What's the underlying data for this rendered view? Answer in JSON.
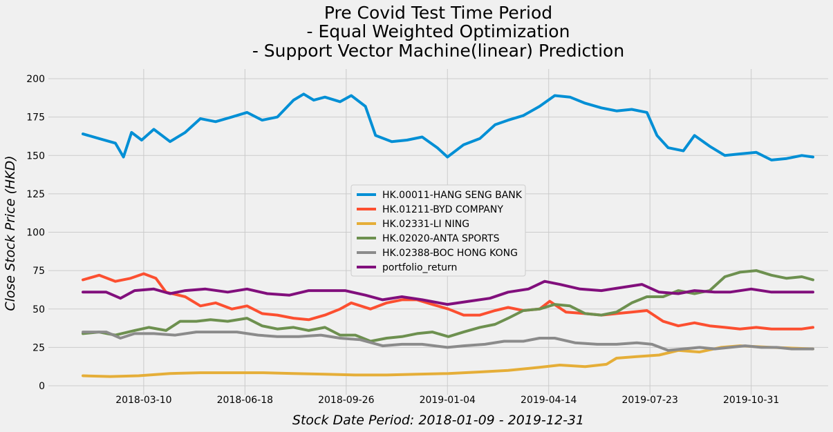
{
  "chart_data": {
    "type": "line",
    "title_lines": [
      "Pre Covid Test Time Period",
      "- Equal Weighted Optimization",
      "- Support Vector Machine(linear) Prediction"
    ],
    "xlabel": "Stock Date Period: 2018-01-09 - 2019-12-31",
    "ylabel": "Close Stock Price (HKD)",
    "ylim": [
      0,
      200
    ],
    "yticks": [
      0,
      25,
      50,
      75,
      100,
      125,
      150,
      175,
      200
    ],
    "xrange": [
      "2018-01-09",
      "2019-12-31"
    ],
    "xticks": [
      "2018-03-10",
      "2018-06-18",
      "2018-09-26",
      "2019-01-04",
      "2019-04-14",
      "2019-07-23",
      "2019-10-31"
    ],
    "grid": true,
    "legend_position": "center",
    "series": [
      {
        "name": "HK.00011-HANG SENG BANK",
        "color": "#008fd5",
        "points": [
          [
            "2018-01-09",
            164
          ],
          [
            "2018-01-25",
            161
          ],
          [
            "2018-02-10",
            158
          ],
          [
            "2018-02-18",
            149
          ],
          [
            "2018-02-26",
            165
          ],
          [
            "2018-03-08",
            160
          ],
          [
            "2018-03-20",
            167
          ],
          [
            "2018-04-05",
            159
          ],
          [
            "2018-04-20",
            165
          ],
          [
            "2018-05-05",
            174
          ],
          [
            "2018-05-20",
            172
          ],
          [
            "2018-06-05",
            175
          ],
          [
            "2018-06-20",
            178
          ],
          [
            "2018-07-05",
            173
          ],
          [
            "2018-07-20",
            175
          ],
          [
            "2018-08-05",
            186
          ],
          [
            "2018-08-15",
            190
          ],
          [
            "2018-08-25",
            186
          ],
          [
            "2018-09-05",
            188
          ],
          [
            "2018-09-20",
            185
          ],
          [
            "2018-10-01",
            189
          ],
          [
            "2018-10-15",
            182
          ],
          [
            "2018-10-25",
            163
          ],
          [
            "2018-11-10",
            159
          ],
          [
            "2018-11-25",
            160
          ],
          [
            "2018-12-10",
            162
          ],
          [
            "2018-12-25",
            155
          ],
          [
            "2019-01-04",
            149
          ],
          [
            "2019-01-20",
            157
          ],
          [
            "2019-02-05",
            161
          ],
          [
            "2019-02-20",
            170
          ],
          [
            "2019-03-05",
            173
          ],
          [
            "2019-03-20",
            176
          ],
          [
            "2019-04-05",
            182
          ],
          [
            "2019-04-20",
            189
          ],
          [
            "2019-05-05",
            188
          ],
          [
            "2019-05-20",
            184
          ],
          [
            "2019-06-05",
            181
          ],
          [
            "2019-06-20",
            179
          ],
          [
            "2019-07-05",
            180
          ],
          [
            "2019-07-20",
            178
          ],
          [
            "2019-07-30",
            163
          ],
          [
            "2019-08-10",
            155
          ],
          [
            "2019-08-25",
            153
          ],
          [
            "2019-09-05",
            163
          ],
          [
            "2019-09-20",
            156
          ],
          [
            "2019-10-05",
            150
          ],
          [
            "2019-10-20",
            151
          ],
          [
            "2019-11-05",
            152
          ],
          [
            "2019-11-20",
            147
          ],
          [
            "2019-12-05",
            148
          ],
          [
            "2019-12-20",
            150
          ],
          [
            "2019-12-31",
            149
          ]
        ]
      },
      {
        "name": "HK.01211-BYD COMPANY",
        "color": "#fc4f30",
        "points": [
          [
            "2018-01-09",
            69
          ],
          [
            "2018-01-25",
            72
          ],
          [
            "2018-02-10",
            68
          ],
          [
            "2018-02-25",
            70
          ],
          [
            "2018-03-10",
            73
          ],
          [
            "2018-03-22",
            70
          ],
          [
            "2018-04-01",
            61
          ],
          [
            "2018-04-20",
            58
          ],
          [
            "2018-05-05",
            52
          ],
          [
            "2018-05-20",
            54
          ],
          [
            "2018-06-05",
            50
          ],
          [
            "2018-06-20",
            52
          ],
          [
            "2018-07-05",
            47
          ],
          [
            "2018-07-20",
            46
          ],
          [
            "2018-08-05",
            44
          ],
          [
            "2018-08-20",
            43
          ],
          [
            "2018-09-05",
            46
          ],
          [
            "2018-09-20",
            50
          ],
          [
            "2018-10-01",
            54
          ],
          [
            "2018-10-20",
            50
          ],
          [
            "2018-11-05",
            54
          ],
          [
            "2018-11-20",
            56
          ],
          [
            "2018-12-05",
            56
          ],
          [
            "2018-12-20",
            53
          ],
          [
            "2019-01-05",
            50
          ],
          [
            "2019-01-20",
            46
          ],
          [
            "2019-02-05",
            46
          ],
          [
            "2019-02-20",
            49
          ],
          [
            "2019-03-05",
            51
          ],
          [
            "2019-03-20",
            49
          ],
          [
            "2019-04-05",
            50
          ],
          [
            "2019-04-15",
            55
          ],
          [
            "2019-05-01",
            48
          ],
          [
            "2019-05-20",
            47
          ],
          [
            "2019-06-05",
            46
          ],
          [
            "2019-06-20",
            47
          ],
          [
            "2019-07-05",
            48
          ],
          [
            "2019-07-20",
            49
          ],
          [
            "2019-08-05",
            42
          ],
          [
            "2019-08-20",
            39
          ],
          [
            "2019-09-05",
            41
          ],
          [
            "2019-09-20",
            39
          ],
          [
            "2019-10-05",
            38
          ],
          [
            "2019-10-20",
            37
          ],
          [
            "2019-11-05",
            38
          ],
          [
            "2019-11-20",
            37
          ],
          [
            "2019-12-05",
            37
          ],
          [
            "2019-12-20",
            37
          ],
          [
            "2019-12-31",
            38
          ]
        ]
      },
      {
        "name": "HK.02331-LI NING",
        "color": "#e5ae38",
        "points": [
          [
            "2018-01-09",
            6.5
          ],
          [
            "2018-02-05",
            6
          ],
          [
            "2018-03-05",
            6.5
          ],
          [
            "2018-04-05",
            8
          ],
          [
            "2018-05-05",
            8.5
          ],
          [
            "2018-06-05",
            8.5
          ],
          [
            "2018-07-05",
            8.5
          ],
          [
            "2018-08-05",
            8
          ],
          [
            "2018-09-05",
            7.5
          ],
          [
            "2018-10-05",
            7
          ],
          [
            "2018-11-05",
            7
          ],
          [
            "2018-12-05",
            7.5
          ],
          [
            "2019-01-05",
            8
          ],
          [
            "2019-02-05",
            9
          ],
          [
            "2019-03-05",
            10
          ],
          [
            "2019-04-05",
            12
          ],
          [
            "2019-04-25",
            13.5
          ],
          [
            "2019-05-20",
            12.5
          ],
          [
            "2019-06-10",
            14
          ],
          [
            "2019-06-20",
            18
          ],
          [
            "2019-07-10",
            19
          ],
          [
            "2019-08-01",
            20
          ],
          [
            "2019-08-20",
            23
          ],
          [
            "2019-09-10",
            22
          ],
          [
            "2019-10-01",
            25
          ],
          [
            "2019-10-20",
            26
          ],
          [
            "2019-11-20",
            25
          ],
          [
            "2019-12-31",
            24
          ]
        ]
      },
      {
        "name": "HK.02020-ANTA SPORTS",
        "color": "#6d904f",
        "points": [
          [
            "2018-01-09",
            34
          ],
          [
            "2018-01-25",
            35
          ],
          [
            "2018-02-10",
            33
          ],
          [
            "2018-03-01",
            36
          ],
          [
            "2018-03-15",
            38
          ],
          [
            "2018-04-01",
            36
          ],
          [
            "2018-04-15",
            42
          ],
          [
            "2018-05-01",
            42
          ],
          [
            "2018-05-15",
            43
          ],
          [
            "2018-06-01",
            42
          ],
          [
            "2018-06-20",
            44
          ],
          [
            "2018-07-05",
            39
          ],
          [
            "2018-07-20",
            37
          ],
          [
            "2018-08-05",
            38
          ],
          [
            "2018-08-20",
            36
          ],
          [
            "2018-09-05",
            38
          ],
          [
            "2018-09-20",
            33
          ],
          [
            "2018-10-05",
            33
          ],
          [
            "2018-10-20",
            29
          ],
          [
            "2018-11-05",
            31
          ],
          [
            "2018-11-20",
            32
          ],
          [
            "2018-12-05",
            34
          ],
          [
            "2018-12-20",
            35
          ],
          [
            "2019-01-05",
            32
          ],
          [
            "2019-01-20",
            35
          ],
          [
            "2019-02-05",
            38
          ],
          [
            "2019-02-20",
            40
          ],
          [
            "2019-03-05",
            44
          ],
          [
            "2019-03-20",
            49
          ],
          [
            "2019-04-05",
            50
          ],
          [
            "2019-04-20",
            53
          ],
          [
            "2019-05-05",
            52
          ],
          [
            "2019-05-20",
            47
          ],
          [
            "2019-06-05",
            46
          ],
          [
            "2019-06-20",
            48
          ],
          [
            "2019-07-05",
            54
          ],
          [
            "2019-07-20",
            58
          ],
          [
            "2019-08-05",
            58
          ],
          [
            "2019-08-20",
            62
          ],
          [
            "2019-09-05",
            60
          ],
          [
            "2019-09-20",
            62
          ],
          [
            "2019-10-05",
            71
          ],
          [
            "2019-10-20",
            74
          ],
          [
            "2019-11-05",
            75
          ],
          [
            "2019-11-20",
            72
          ],
          [
            "2019-12-05",
            70
          ],
          [
            "2019-12-20",
            71
          ],
          [
            "2019-12-31",
            69
          ]
        ]
      },
      {
        "name": "HK.02388-BOC HONG KONG",
        "color": "#8b8b8b",
        "points": [
          [
            "2018-01-09",
            35
          ],
          [
            "2018-02-01",
            35
          ],
          [
            "2018-02-15",
            31
          ],
          [
            "2018-03-01",
            34
          ],
          [
            "2018-03-20",
            34
          ],
          [
            "2018-04-10",
            33
          ],
          [
            "2018-05-01",
            35
          ],
          [
            "2018-05-20",
            35
          ],
          [
            "2018-06-10",
            35
          ],
          [
            "2018-07-01",
            33
          ],
          [
            "2018-07-20",
            32
          ],
          [
            "2018-08-10",
            32
          ],
          [
            "2018-09-01",
            33
          ],
          [
            "2018-09-20",
            31
          ],
          [
            "2018-10-10",
            30
          ],
          [
            "2018-11-01",
            26
          ],
          [
            "2018-11-20",
            27
          ],
          [
            "2018-12-10",
            27
          ],
          [
            "2019-01-04",
            25
          ],
          [
            "2019-01-20",
            26
          ],
          [
            "2019-02-10",
            27
          ],
          [
            "2019-03-01",
            29
          ],
          [
            "2019-03-20",
            29
          ],
          [
            "2019-04-05",
            31
          ],
          [
            "2019-04-20",
            31
          ],
          [
            "2019-05-10",
            28
          ],
          [
            "2019-06-01",
            27
          ],
          [
            "2019-06-20",
            27
          ],
          [
            "2019-07-10",
            28
          ],
          [
            "2019-07-25",
            27
          ],
          [
            "2019-08-10",
            23
          ],
          [
            "2019-08-25",
            24
          ],
          [
            "2019-09-10",
            25
          ],
          [
            "2019-09-25",
            24
          ],
          [
            "2019-10-10",
            25
          ],
          [
            "2019-10-25",
            26
          ],
          [
            "2019-11-10",
            25
          ],
          [
            "2019-11-25",
            25
          ],
          [
            "2019-12-10",
            24
          ],
          [
            "2019-12-31",
            24
          ]
        ]
      },
      {
        "name": "portfolio_return",
        "color": "#810f7c",
        "points": [
          [
            "2018-01-09",
            61
          ],
          [
            "2018-02-01",
            61
          ],
          [
            "2018-02-15",
            57
          ],
          [
            "2018-03-01",
            62
          ],
          [
            "2018-03-20",
            63
          ],
          [
            "2018-04-05",
            60
          ],
          [
            "2018-04-20",
            62
          ],
          [
            "2018-05-10",
            63
          ],
          [
            "2018-06-01",
            61
          ],
          [
            "2018-06-20",
            63
          ],
          [
            "2018-07-10",
            60
          ],
          [
            "2018-08-01",
            59
          ],
          [
            "2018-08-20",
            62
          ],
          [
            "2018-09-10",
            62
          ],
          [
            "2018-09-25",
            62
          ],
          [
            "2018-10-15",
            59
          ],
          [
            "2018-11-01",
            56
          ],
          [
            "2018-11-20",
            58
          ],
          [
            "2018-12-10",
            56
          ],
          [
            "2019-01-04",
            53
          ],
          [
            "2019-01-25",
            55
          ],
          [
            "2019-02-15",
            57
          ],
          [
            "2019-03-05",
            61
          ],
          [
            "2019-03-25",
            63
          ],
          [
            "2019-04-10",
            68
          ],
          [
            "2019-04-25",
            66
          ],
          [
            "2019-05-15",
            63
          ],
          [
            "2019-06-05",
            62
          ],
          [
            "2019-06-25",
            64
          ],
          [
            "2019-07-15",
            66
          ],
          [
            "2019-08-01",
            61
          ],
          [
            "2019-08-20",
            60
          ],
          [
            "2019-09-05",
            62
          ],
          [
            "2019-09-25",
            61
          ],
          [
            "2019-10-10",
            61
          ],
          [
            "2019-10-31",
            63
          ],
          [
            "2019-11-20",
            61
          ],
          [
            "2019-12-10",
            61
          ],
          [
            "2019-12-31",
            61
          ]
        ]
      }
    ]
  }
}
